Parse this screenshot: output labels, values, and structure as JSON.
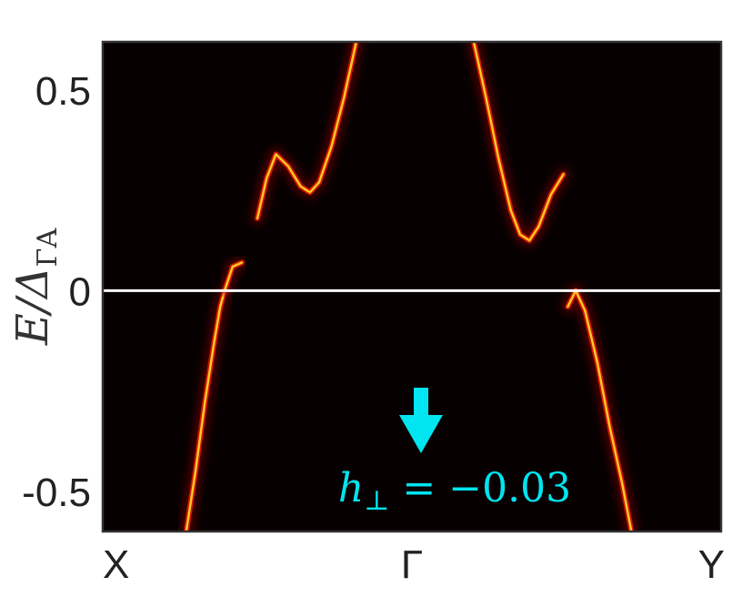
{
  "chart_data": {
    "type": "heatmap",
    "title": "",
    "ylabel": "E/Δ",
    "ylabel_subscript": "ΓA",
    "ylim": [
      -0.6,
      0.62
    ],
    "y_ticks": [
      {
        "value": 0.5,
        "label": "0.5"
      },
      {
        "value": 0,
        "label": "0"
      },
      {
        "value": -0.5,
        "label": "-0.5"
      }
    ],
    "x_ticks": [
      {
        "value": 0,
        "label": "X"
      },
      {
        "value": 0.5,
        "label": "Γ"
      },
      {
        "value": 1,
        "label": "Y"
      }
    ],
    "grid": false,
    "colormap": "hot",
    "background_color": "#060000",
    "reference_line": {
      "y": 0,
      "color": "#ffffff"
    },
    "annotation": {
      "text_italic": "h",
      "text_subscript": "⊥",
      "text_rest": " = −0.03",
      "color": "#00e5f0",
      "arrow": "down"
    },
    "series": [
      {
        "points": [
          [
            0.135,
            -0.6
          ],
          [
            0.15,
            -0.45
          ],
          [
            0.165,
            -0.28
          ],
          [
            0.18,
            -0.13
          ],
          [
            0.19,
            -0.04
          ],
          [
            0.197,
            0.0
          ]
        ]
      },
      {
        "points": [
          [
            0.197,
            0.0
          ],
          [
            0.21,
            0.06
          ],
          [
            0.225,
            0.07
          ]
        ]
      },
      {
        "points": [
          [
            0.25,
            0.18
          ],
          [
            0.265,
            0.28
          ],
          [
            0.28,
            0.34
          ],
          [
            0.3,
            0.31
          ],
          [
            0.32,
            0.26
          ],
          [
            0.335,
            0.245
          ],
          [
            0.35,
            0.27
          ],
          [
            0.37,
            0.36
          ],
          [
            0.39,
            0.48
          ],
          [
            0.41,
            0.62
          ]
        ]
      },
      {
        "points": [
          [
            0.6,
            0.62
          ],
          [
            0.62,
            0.48
          ],
          [
            0.64,
            0.33
          ],
          [
            0.66,
            0.2
          ],
          [
            0.675,
            0.14
          ],
          [
            0.69,
            0.125
          ],
          [
            0.705,
            0.16
          ],
          [
            0.725,
            0.24
          ],
          [
            0.745,
            0.29
          ]
        ]
      },
      {
        "points": [
          [
            0.752,
            -0.04
          ],
          [
            0.765,
            0.0
          ],
          [
            0.78,
            -0.05
          ],
          [
            0.8,
            -0.18
          ],
          [
            0.82,
            -0.34
          ],
          [
            0.84,
            -0.48
          ],
          [
            0.855,
            -0.6
          ]
        ]
      }
    ]
  }
}
